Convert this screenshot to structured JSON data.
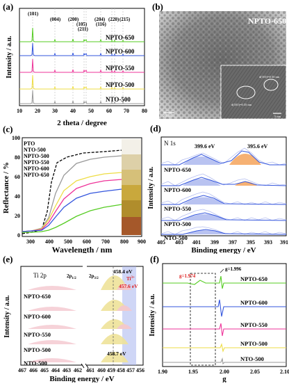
{
  "panels": {
    "a": {
      "label": "(a)",
      "xlabel": "2 theta / degree",
      "ylabel": "Intensity / a.u.",
      "xticks": [
        "10",
        "20",
        "30",
        "40",
        "50",
        "60",
        "70",
        "80"
      ],
      "peaks": [
        "(101)",
        "(004)",
        "(200)",
        "(105)",
        "(211)",
        "(204)",
        "(116)",
        "(220)",
        "(215)"
      ],
      "series": [
        "NPTO-650",
        "NPTO-600",
        "NPTO-550",
        "NPTO-500",
        "NTO-500"
      ]
    },
    "b": {
      "label": "(b)",
      "title": "NPTO-650",
      "scale1": "20 nm",
      "scale2": "5 nm",
      "ann1": "d(101)=0.35 nm",
      "ann2": "d(101)=0.35 nm"
    },
    "c": {
      "label": "(c)",
      "xlabel": "Wavelength / nm",
      "ylabel": "Reflectance / %",
      "xticks": [
        "300",
        "400",
        "500",
        "600",
        "700",
        "800",
        "900"
      ],
      "yticks": [
        "0",
        "20",
        "40",
        "60",
        "80",
        "100"
      ],
      "legend": [
        "PTO",
        "NTO-500",
        "NPTO-500",
        "NPTO-550",
        "NPTO-600",
        "NPTO-650"
      ]
    },
    "d": {
      "label": "(d)",
      "title": "N 1s",
      "peak1": "399.6 eV",
      "peak2": "395.6 eV",
      "xlabel": "Binding energy / eV",
      "ylabel": "Intensity / a.u.",
      "xticks": [
        "405",
        "403",
        "401",
        "399",
        "397",
        "395",
        "393",
        "391"
      ],
      "series": [
        "NPTO-650",
        "NPTO-600",
        "NPTO-550",
        "NPTO-500",
        "NTO-500"
      ]
    },
    "e": {
      "label": "(e)",
      "title": "Ti 2p",
      "p12": "2p",
      "p12sub": "1/2",
      "p32": "2p",
      "p32sub": "3/2",
      "peak1": "458.4 eV",
      "ti3": "Ti",
      "ti3sup": "3+",
      "peak2": "457.6 eV",
      "peak3": "458.7 eV",
      "xlabel": "Binding energy / eV",
      "ylabel": "Intensity / a.u.",
      "xticks": [
        "467",
        "466",
        "465",
        "464",
        "463",
        "462",
        "461",
        "460",
        "459",
        "458",
        "457",
        "456"
      ],
      "series": [
        "NPTO-650",
        "NPTO-600",
        "NPTO-550",
        "NPTO-500",
        "NTO-500"
      ]
    },
    "f": {
      "label": "(f)",
      "g1": "g=1.974",
      "g2": "g=1.996",
      "xlabel": "g",
      "ylabel": "Intensity / a.u.",
      "xticks": [
        "1.90",
        "1.95",
        "2.00",
        "2.05",
        "2.10"
      ],
      "series": [
        "NPTO-650",
        "NPTO-600",
        "NPTO-550",
        "NPTO-500",
        "NTO-500"
      ]
    }
  },
  "colors": {
    "green": "#55cc22",
    "blue": "#3355dd",
    "pink": "#ee3399",
    "yellow": "#eedd44",
    "gray": "#999999",
    "fillBlue": "#a8b4ee",
    "fillOrange": "#f5a35a",
    "fillYellow": "#efe39a",
    "fillPink": "#f4c7cf"
  },
  "chart_data": [
    {
      "type": "line",
      "title": "",
      "xlabel": "2 theta / degree",
      "ylabel": "Intensity / a.u.",
      "xlim": [
        10,
        80
      ],
      "series": [
        {
          "name": "NPTO-650",
          "peaks_2theta": [
            25.3,
            37.8,
            48.0,
            53.9,
            55.1,
            62.7,
            68.8,
            70.3,
            75.0
          ]
        },
        {
          "name": "NPTO-600",
          "peaks_2theta": [
            25.3,
            37.8,
            48.0,
            53.9,
            55.1,
            62.7,
            68.8,
            70.3,
            75.0
          ]
        },
        {
          "name": "NPTO-550",
          "peaks_2theta": [
            25.3,
            37.8,
            48.0,
            53.9,
            55.1,
            62.7,
            68.8,
            70.3,
            75.0
          ]
        },
        {
          "name": "NPTO-500",
          "peaks_2theta": [
            25.3,
            37.8,
            48.0,
            53.9,
            55.1,
            62.7,
            68.8,
            70.3,
            75.0
          ]
        },
        {
          "name": "NTO-500",
          "peaks_2theta": [
            25.3,
            37.8,
            48.0,
            53.9,
            55.1,
            62.7,
            68.8,
            70.3,
            75.0
          ]
        }
      ]
    },
    {
      "type": "line",
      "title": "",
      "xlabel": "Wavelength / nm",
      "ylabel": "Reflectance / %",
      "xlim": [
        250,
        900
      ],
      "ylim": [
        0,
        100
      ],
      "x": [
        250,
        300,
        350,
        370,
        400,
        450,
        500,
        600,
        700,
        800
      ],
      "series": [
        {
          "name": "PTO",
          "values": [
            2,
            3,
            12,
            60,
            90,
            96,
            98,
            99,
            99,
            100
          ]
        },
        {
          "name": "NTO-500",
          "values": [
            5,
            6,
            10,
            25,
            55,
            75,
            83,
            89,
            92,
            94
          ]
        },
        {
          "name": "NPTO-500",
          "values": [
            5,
            6,
            9,
            20,
            40,
            55,
            63,
            71,
            75,
            77
          ]
        },
        {
          "name": "NPTO-550",
          "values": [
            5,
            6,
            8,
            15,
            30,
            45,
            55,
            65,
            70,
            72
          ]
        },
        {
          "name": "NPTO-600",
          "values": [
            5,
            6,
            7,
            12,
            22,
            35,
            45,
            55,
            60,
            62
          ]
        },
        {
          "name": "NPTO-650",
          "values": [
            4,
            4,
            5,
            6,
            9,
            15,
            21,
            30,
            37,
            41
          ]
        }
      ]
    },
    {
      "type": "line",
      "title": "N 1s",
      "xlabel": "Binding energy / eV",
      "ylabel": "Intensity / a.u.",
      "xlim": [
        405,
        391
      ],
      "series": [
        {
          "name": "NPTO-650",
          "peaks_eV": [
            399.6,
            395.6
          ]
        },
        {
          "name": "NPTO-600",
          "peaks_eV": [
            399.6,
            395.6
          ]
        },
        {
          "name": "NPTO-550",
          "peaks_eV": [
            399.6
          ]
        },
        {
          "name": "NPTO-500",
          "peaks_eV": [
            399.6
          ]
        },
        {
          "name": "NTO-500",
          "peaks_eV": [
            399.6
          ]
        }
      ]
    },
    {
      "type": "line",
      "title": "Ti 2p",
      "xlabel": "Binding energy / eV",
      "ylabel": "Intensity / a.u.",
      "xlim": [
        467,
        456
      ],
      "series": [
        {
          "name": "NPTO-650",
          "peaks_eV": [
            464.1,
            458.4,
            457.6
          ]
        },
        {
          "name": "NPTO-600",
          "peaks_eV": [
            464.1,
            458.4,
            457.6
          ]
        },
        {
          "name": "NPTO-550",
          "peaks_eV": [
            464.1,
            458.4,
            457.6
          ]
        },
        {
          "name": "NPTO-500",
          "peaks_eV": [
            464.3,
            458.5
          ]
        },
        {
          "name": "NTO-500",
          "peaks_eV": [
            464.4,
            458.7
          ]
        }
      ]
    },
    {
      "type": "line",
      "title": "",
      "xlabel": "g",
      "ylabel": "Intensity / a.u.",
      "xlim": [
        1.9,
        2.1
      ],
      "series": [
        {
          "name": "NPTO-650",
          "features_g": [
            1.974,
            1.996
          ]
        },
        {
          "name": "NPTO-600",
          "features_g": [
            1.996
          ]
        },
        {
          "name": "NPTO-550",
          "features_g": [
            1.996
          ]
        },
        {
          "name": "NPTO-500",
          "features_g": [
            1.996
          ]
        },
        {
          "name": "NTO-500",
          "features_g": [
            1.996
          ]
        }
      ]
    }
  ]
}
